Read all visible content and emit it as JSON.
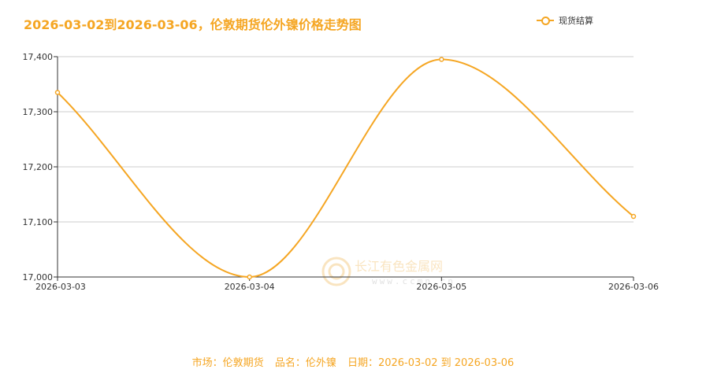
{
  "title": "2026-03-02到2026-03-06，伦敦期货伦外镍价格走势图",
  "watermark": {
    "name": "长江有色金属网",
    "url": "www.ccmn.cn"
  },
  "footer": {
    "market": "市场：伦敦期货",
    "product": "品名：伦外镍",
    "date": "日期：2026-03-02 到 2026-03-06"
  },
  "colors": {
    "series": "#f5a623",
    "title": "#f5a623",
    "grid": "#cccccc",
    "axis": "#333333"
  },
  "chart_data": {
    "type": "line",
    "title": "2026-03-02到2026-03-06，伦敦期货伦外镍价格走势图",
    "categories": [
      "2026-03-03",
      "2026-03-04",
      "2026-03-05",
      "2026-03-06"
    ],
    "series": [
      {
        "name": "现货结算",
        "values": [
          17335,
          17000,
          17395,
          17110
        ]
      }
    ],
    "yticks": [
      "17,000",
      "17,100",
      "17,200",
      "17,300",
      "17,400"
    ],
    "ylim": [
      17000,
      17400
    ],
    "grid": true,
    "smooth": true,
    "legend": "top-right"
  }
}
